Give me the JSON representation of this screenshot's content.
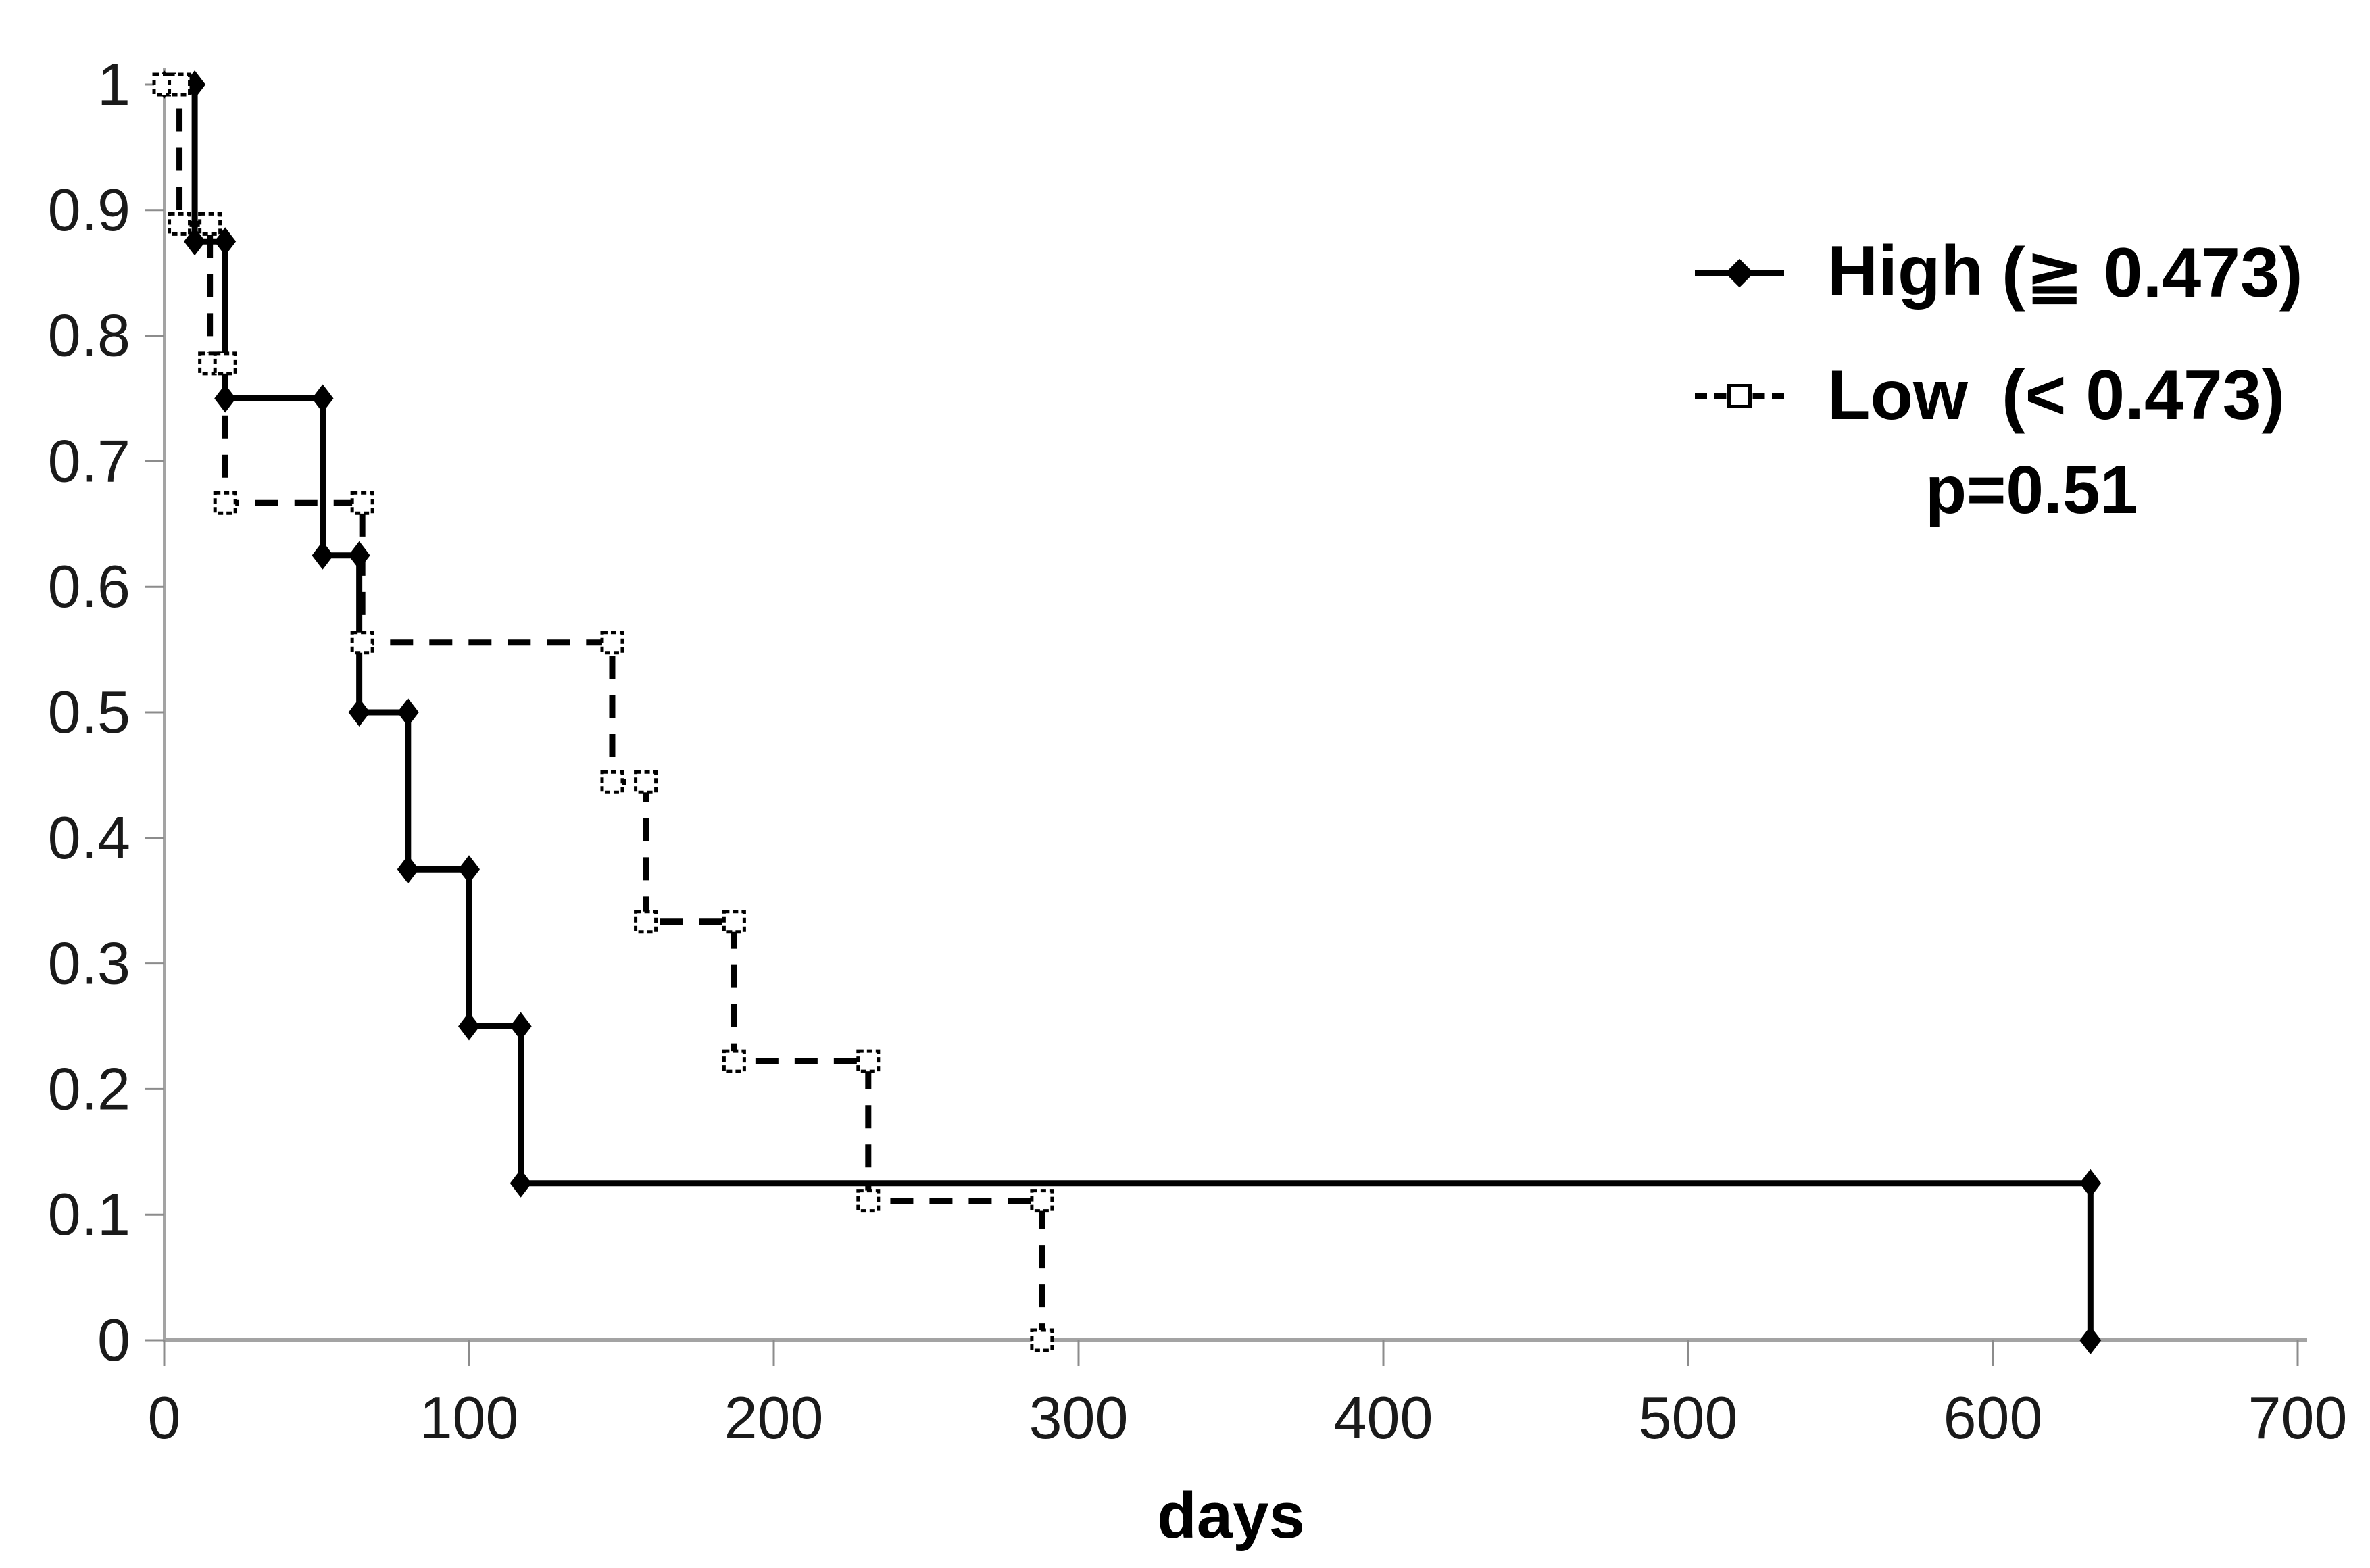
{
  "figure": {
    "background": "#ffffff",
    "axis_color": "#a3a3a3",
    "tick_color": "#8c8c8c",
    "text_color": "#1a1a1a",
    "series_color": "#000000"
  },
  "legend": {
    "entries": [
      {
        "name": "High",
        "range": "(≧ 0.473)",
        "line": "solid",
        "marker": "filled-diamond",
        "color": "#000000"
      },
      {
        "name": "Low",
        "range": "(< 0.473)",
        "line": "dashed",
        "marker": "open-square",
        "color": "#000000"
      }
    ],
    "p_value": "p=0.51"
  },
  "chart_data": {
    "type": "line",
    "subtype": "kaplan-meier-step",
    "title": "",
    "xlabel": "days",
    "ylabel": "",
    "xlim": [
      0,
      700
    ],
    "ylim": [
      0,
      1
    ],
    "xticks": [
      0,
      100,
      200,
      300,
      400,
      500,
      600,
      700
    ],
    "yticks": [
      1,
      0.9,
      0.8,
      0.7,
      0.6,
      0.5,
      0.4,
      0.3,
      0.2,
      0.1,
      0
    ],
    "grid": false,
    "legend_position": "upper right",
    "annotation": "p=0.51",
    "series": [
      {
        "name": "High (≧ 0.473)",
        "line": "solid",
        "marker": "filled-diamond",
        "color": "#000000",
        "steps": [
          [
            0,
            1
          ],
          [
            10,
            0.875
          ],
          [
            20,
            0.75
          ],
          [
            52,
            0.625
          ],
          [
            64,
            0.5
          ],
          [
            80,
            0.375
          ],
          [
            100,
            0.25
          ],
          [
            117,
            0.125
          ],
          [
            632,
            0
          ]
        ]
      },
      {
        "name": "Low (< 0.473)",
        "line": "dashed",
        "marker": "open-square",
        "color": "#000000",
        "steps": [
          [
            0,
            1
          ],
          [
            5,
            0.8889
          ],
          [
            15,
            0.7778
          ],
          [
            20,
            0.6667
          ],
          [
            65,
            0.5556
          ],
          [
            147,
            0.4444
          ],
          [
            158,
            0.3333
          ],
          [
            187,
            0.2222
          ],
          [
            231,
            0.1111
          ],
          [
            288,
            0
          ]
        ]
      }
    ]
  }
}
